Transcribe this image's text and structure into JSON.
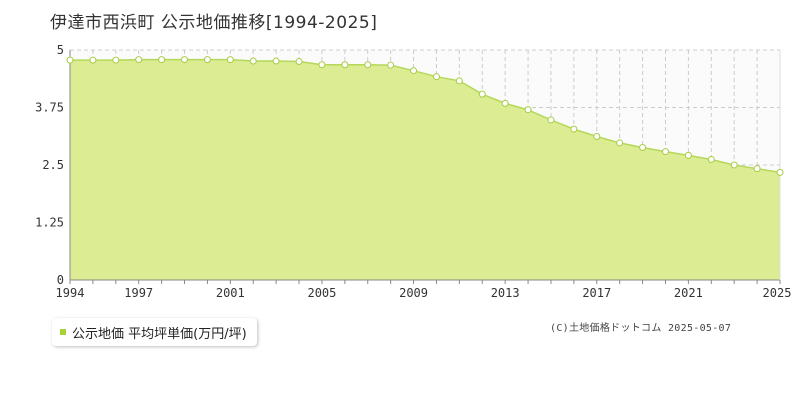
{
  "chart_data": {
    "type": "area",
    "title": "伊達市西浜町 公示地価推移[1994-2025]",
    "xlabel": "",
    "ylabel": "",
    "x": [
      1994,
      1995,
      1996,
      1997,
      1998,
      1999,
      2000,
      2001,
      2002,
      2003,
      2004,
      2005,
      2006,
      2007,
      2008,
      2009,
      2010,
      2011,
      2012,
      2013,
      2014,
      2015,
      2016,
      2017,
      2018,
      2019,
      2020,
      2021,
      2022,
      2023,
      2024,
      2025
    ],
    "series": [
      {
        "name": "公示地価 平均坪単価(万円/坪)",
        "values": [
          4.78,
          4.78,
          4.78,
          4.79,
          4.79,
          4.79,
          4.79,
          4.79,
          4.76,
          4.76,
          4.75,
          4.68,
          4.68,
          4.68,
          4.67,
          4.55,
          4.42,
          4.33,
          4.04,
          3.84,
          3.7,
          3.48,
          3.28,
          3.12,
          2.98,
          2.88,
          2.79,
          2.71,
          2.62,
          2.5,
          2.42,
          2.34
        ]
      }
    ],
    "xlim": [
      1994,
      2025
    ],
    "ylim": [
      0,
      5
    ],
    "x_ticks": [
      "1994",
      "1997",
      "2001",
      "2005",
      "2009",
      "2013",
      "2017",
      "2021",
      "2025"
    ],
    "y_ticks": [
      "0",
      "1.25",
      "2.5",
      "3.75",
      "5"
    ],
    "grid": true,
    "legend_position": "bottom-left",
    "colors": {
      "fill": "#dcec93",
      "line": "#b5d85a",
      "marker_fill": "#ffffff",
      "marker_stroke": "#a8cc45",
      "grid": "#cccccc"
    }
  },
  "legend": {
    "label": "公示地価 平均坪単価(万円/坪)"
  },
  "credit": "(C)土地価格ドットコム 2025-05-07"
}
